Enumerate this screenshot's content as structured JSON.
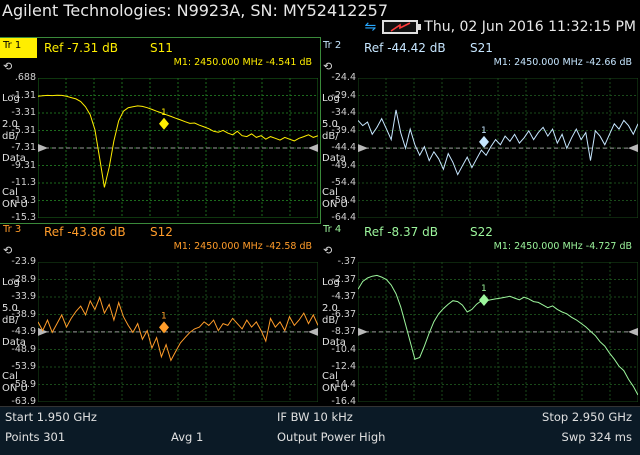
{
  "app": {
    "title": "Agilent Technologies: N9923A, SN: MY52412257",
    "datetime": "Thu, 02 Jun 2016 11:32:15 PM"
  },
  "traces": [
    {
      "id": "tr1",
      "label": "Tr 1",
      "active": true,
      "ref_text": "Ref -7.31 dB",
      "sparam": "S11",
      "marker_text": "M1:  2450.000 MHz   -4.541 dB",
      "marker_label": "1",
      "color": "#ffee00",
      "grid_color": "#1d6b1d",
      "format": "Log",
      "scale_value": "2.0",
      "scale_unit": "dB/",
      "mode": "Data",
      "cal": "Cal",
      "cal_state": "ON U",
      "yticks": [
        ".688",
        "-1.31",
        "-3.31",
        "-5.31",
        "-7.31",
        "-9.31",
        "-11.3",
        "-13.3",
        "-15.3"
      ],
      "ymax": 0.688,
      "ymin": -15.3,
      "ref_value": -7.31,
      "marker": {
        "x": 0.45,
        "y": -4.541
      },
      "values": [
        -1.4,
        -1.35,
        -1.3,
        -1.32,
        -1.28,
        -1.3,
        -1.4,
        -1.55,
        -1.7,
        -2.0,
        -2.6,
        -3.5,
        -5.2,
        -8.5,
        -11.8,
        -9.5,
        -6.5,
        -4.2,
        -3.1,
        -2.7,
        -2.6,
        -2.5,
        -2.55,
        -2.7,
        -2.9,
        -3.1,
        -3.3,
        -3.5,
        -3.7,
        -3.9,
        -4.1,
        -4.3,
        -4.5,
        -4.45,
        -4.7,
        -4.9,
        -5.1,
        -5.4,
        -5.5,
        -5.3,
        -5.6,
        -5.8,
        -5.4,
        -5.9,
        -6.0,
        -5.7,
        -6.1,
        -5.9,
        -6.3,
        -6.0,
        -6.2,
        -6.4,
        -6.1,
        -6.3,
        -6.5,
        -6.2,
        -6.0,
        -5.8,
        -6.1,
        -5.9
      ]
    },
    {
      "id": "tr2",
      "label": "Tr 2",
      "active": false,
      "ref_text": "Ref -44.42 dB",
      "sparam": "S21",
      "marker_text": "M1:  2450.000 MHz   -42.66 dB",
      "marker_label": "1",
      "color": "#c6e6ff",
      "grid_color": "#1a4a1a",
      "format": "Log",
      "scale_value": "5.0",
      "scale_unit": "dB/",
      "mode": "Data",
      "cal": "Cal",
      "cal_state": "ON U",
      "yticks": [
        "-24.4",
        "-29.4",
        "-34.4",
        "-39.4",
        "-44.4",
        "-49.4",
        "-54.4",
        "-59.4",
        "-64.4"
      ],
      "ymax": -24.4,
      "ymin": -64.4,
      "ref_value": -44.42,
      "marker": {
        "x": 0.45,
        "y": -42.66
      },
      "values": [
        -36.5,
        -38.0,
        -37.0,
        -40.5,
        -38.5,
        -36.0,
        -39.0,
        -42.0,
        -33.5,
        -40.0,
        -44.5,
        -39.0,
        -43.5,
        -46.5,
        -44.0,
        -48.0,
        -45.5,
        -47.5,
        -50.5,
        -46.0,
        -48.5,
        -52.0,
        -49.5,
        -47.0,
        -50.0,
        -47.5,
        -45.0,
        -46.5,
        -44.0,
        -42.0,
        -43.5,
        -41.0,
        -42.5,
        -40.5,
        -43.0,
        -41.5,
        -39.5,
        -42.0,
        -40.0,
        -38.5,
        -41.0,
        -39.0,
        -43.0,
        -40.5,
        -44.5,
        -41.5,
        -39.0,
        -42.0,
        -40.0,
        -48.0,
        -39.5,
        -41.0,
        -43.5,
        -40.5,
        -37.5,
        -39.0,
        -36.5,
        -38.0,
        -40.5,
        -37.5
      ]
    },
    {
      "id": "tr3",
      "label": "Tr 3",
      "active": false,
      "ref_text": "Ref -43.86 dB",
      "sparam": "S12",
      "marker_text": "M1:  2450.000 MHz   -42.58 dB",
      "marker_label": "1",
      "color": "#ff9c2a",
      "grid_color": "#1a4a1a",
      "format": "Log",
      "scale_value": "5.0",
      "scale_unit": "dB/",
      "mode": "Data",
      "cal": "Cal",
      "cal_state": "ON U",
      "yticks": [
        "-23.9",
        "-28.9",
        "-33.9",
        "-38.9",
        "-43.9",
        "-48.9",
        "-53.9",
        "-58.9",
        "-63.9"
      ],
      "ymax": -23.9,
      "ymin": -63.9,
      "ref_value": -43.86,
      "marker": {
        "x": 0.45,
        "y": -42.58
      },
      "values": [
        -41.0,
        -43.5,
        -40.5,
        -44.0,
        -41.5,
        -39.0,
        -42.5,
        -40.0,
        -38.0,
        -36.5,
        -39.0,
        -35.0,
        -37.5,
        -34.0,
        -38.5,
        -36.0,
        -40.5,
        -35.5,
        -39.5,
        -42.0,
        -44.0,
        -41.5,
        -46.0,
        -43.5,
        -48.5,
        -45.5,
        -51.0,
        -47.5,
        -52.0,
        -49.5,
        -47.0,
        -45.5,
        -44.0,
        -43.0,
        -42.5,
        -41.0,
        -42.0,
        -40.5,
        -43.5,
        -41.5,
        -42.0,
        -40.0,
        -41.5,
        -43.0,
        -40.5,
        -42.5,
        -41.0,
        -43.5,
        -46.5,
        -40.0,
        -42.5,
        -41.0,
        -43.5,
        -39.5,
        -42.0,
        -40.5,
        -38.5,
        -41.5,
        -39.0,
        -42.0
      ]
    },
    {
      "id": "tr4",
      "label": "Tr 4",
      "active": false,
      "ref_text": "Ref -8.37 dB",
      "sparam": "S22",
      "marker_text": "M1:  2450.000 MHz   -4.727 dB",
      "marker_label": "1",
      "color": "#9cf59c",
      "grid_color": "#1a4a1a",
      "format": "Log",
      "scale_value": "2.0",
      "scale_unit": "dB/",
      "mode": "Data",
      "cal": "Cal",
      "cal_state": "ON U",
      "yticks": [
        "-.37",
        "-2.37",
        "-4.37",
        "-6.37",
        "-8.37",
        "-10.4",
        "-12.4",
        "-14.4",
        "-16.4"
      ],
      "ymax": -0.37,
      "ymin": -16.4,
      "ref_value": -8.37,
      "marker": {
        "x": 0.45,
        "y": -4.727
      },
      "values": [
        -3.5,
        -2.6,
        -2.2,
        -2.0,
        -1.9,
        -2.1,
        -2.4,
        -3.0,
        -4.0,
        -5.5,
        -7.5,
        -9.5,
        -11.5,
        -11.3,
        -10.0,
        -8.5,
        -7.2,
        -6.3,
        -5.7,
        -5.2,
        -4.8,
        -4.9,
        -5.3,
        -6.1,
        -5.8,
        -5.2,
        -4.8,
        -4.8,
        -4.7,
        -4.6,
        -4.5,
        -4.4,
        -4.3,
        -4.5,
        -4.7,
        -4.4,
        -4.6,
        -4.9,
        -5.0,
        -5.3,
        -5.6,
        -5.4,
        -5.8,
        -6.1,
        -6.3,
        -6.7,
        -7.0,
        -7.4,
        -7.8,
        -8.3,
        -8.8,
        -9.5,
        -10.0,
        -10.8,
        -11.5,
        -12.3,
        -12.8,
        -13.8,
        -14.6,
        -15.6
      ]
    }
  ],
  "footer": {
    "start": "Start 1.950 GHz",
    "ifbw": "IF BW 10 kHz",
    "stop": "Stop 2.950 GHz",
    "points": "Points 301",
    "avg": "Avg  1",
    "power": "Output Power High",
    "sweep": "Swp 324 ms"
  },
  "icons": {
    "usb": "usb-icon",
    "battery": "battery-icon",
    "scale": "scale-icon"
  }
}
